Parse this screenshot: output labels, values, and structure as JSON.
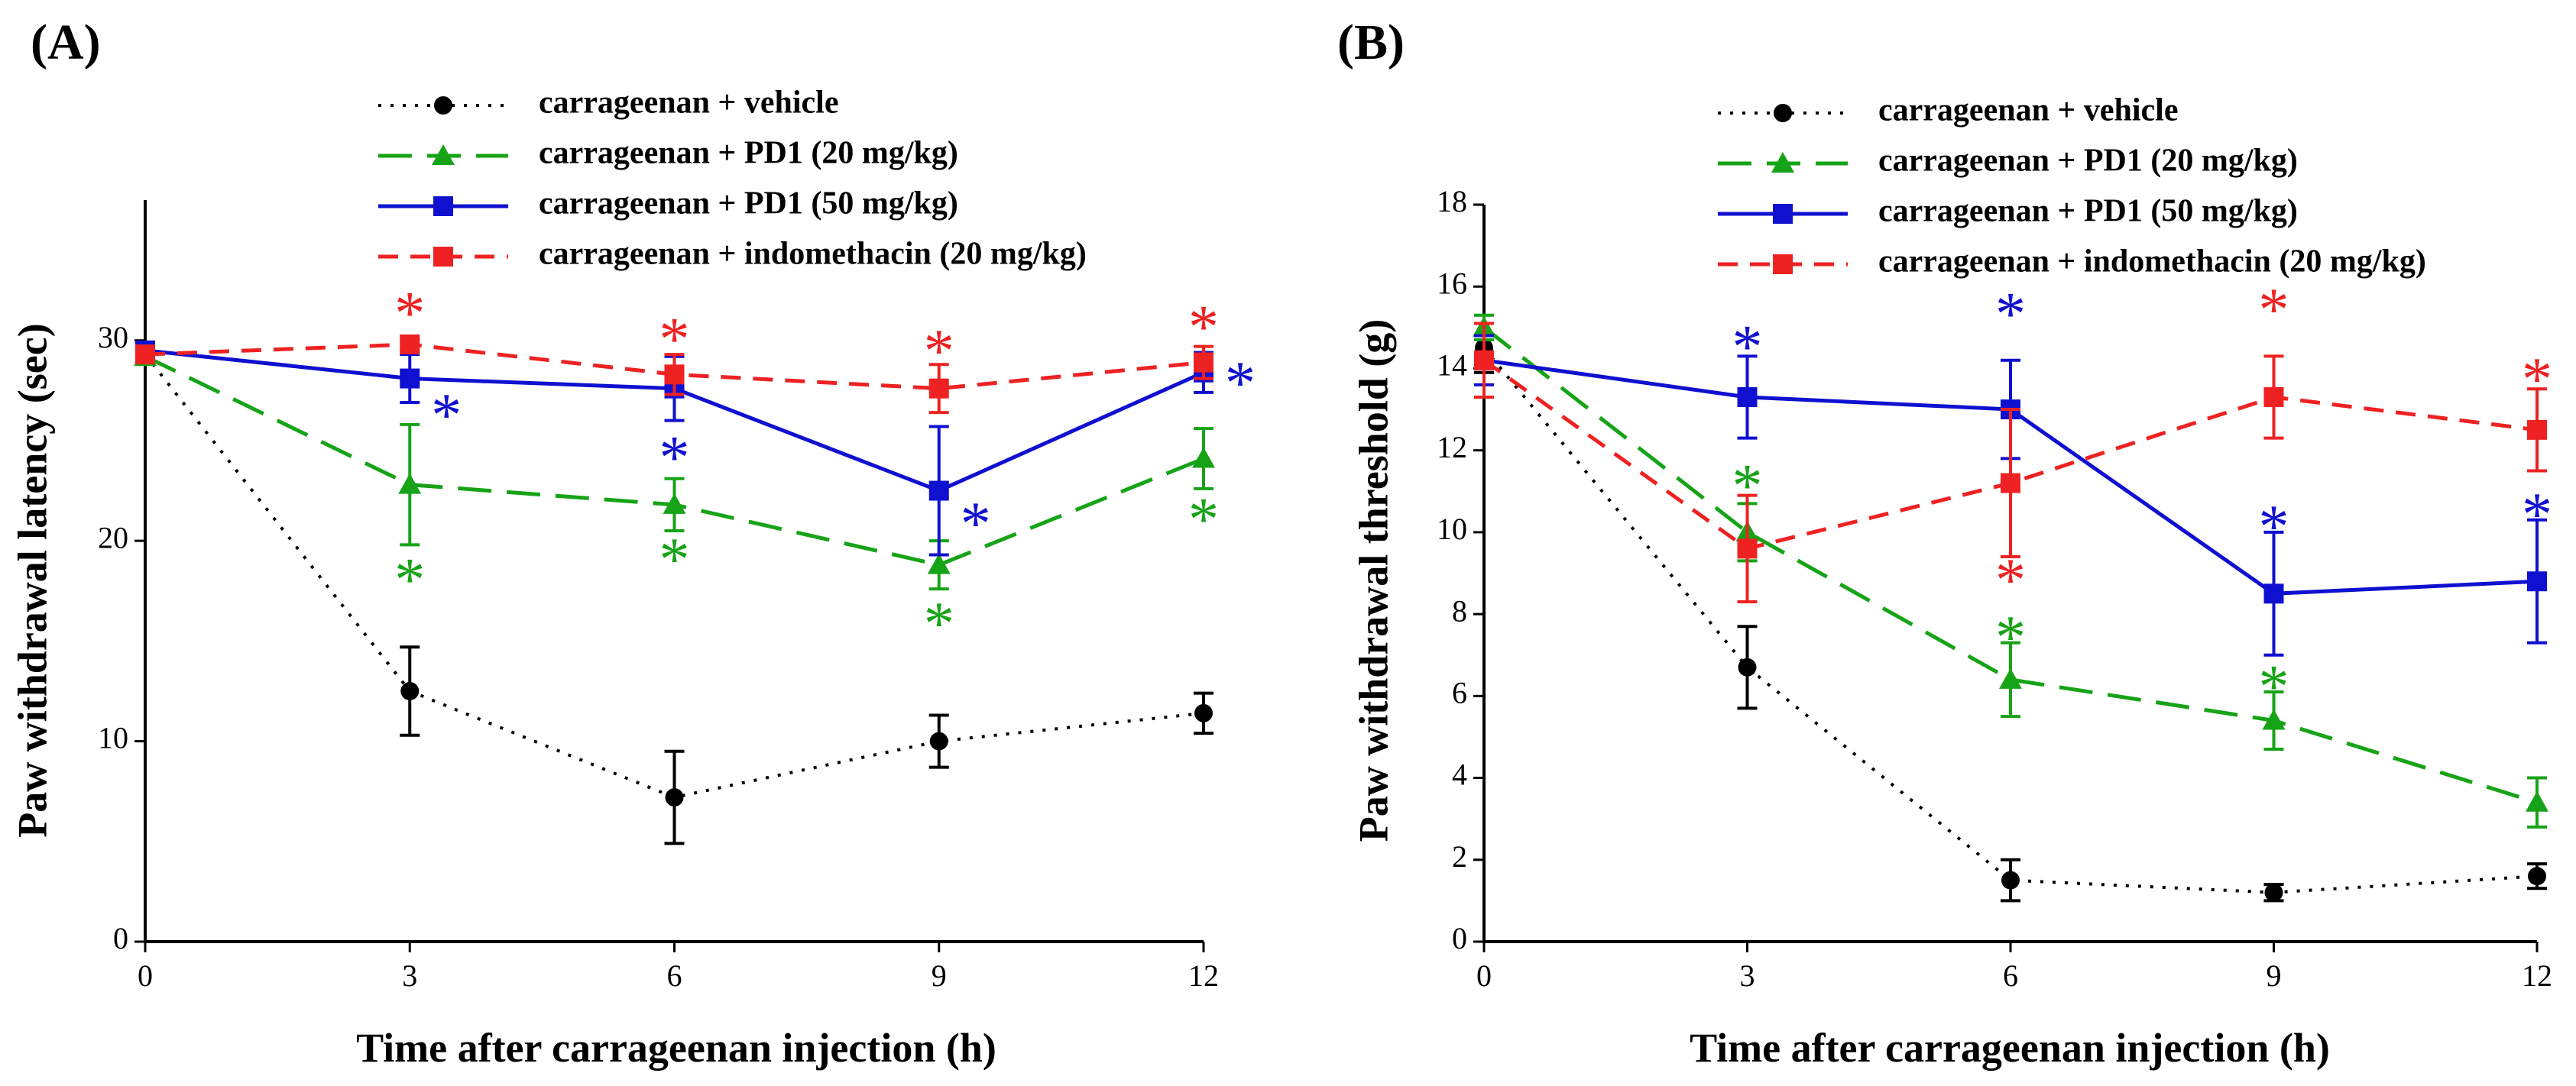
{
  "chart_data": [
    {
      "panel": "(A)",
      "type": "line",
      "xlabel": "Time after carrageenan injection (h)",
      "ylabel": "Paw withdrawal latency (sec)",
      "xlim": [
        0,
        12
      ],
      "ylim": [
        0,
        37
      ],
      "xticks": [
        0,
        3,
        6,
        9,
        12
      ],
      "yticks": [
        0,
        10,
        20,
        30
      ],
      "grid": false,
      "legend_position": "top",
      "x": [
        0,
        3,
        6,
        9,
        12
      ],
      "series": [
        {
          "name": "carrageenan + vehicle",
          "color": "#000000",
          "marker": "circle",
          "dash": "dotted",
          "values": [
            29.3,
            12.5,
            7.2,
            10.0,
            11.4
          ],
          "errors": [
            0.4,
            2.2,
            2.3,
            1.3,
            1.0
          ]
        },
        {
          "name": "carrageenan + PD1 (20 mg/kg)",
          "color": "#17a317",
          "marker": "triangle",
          "dash": "long-dash",
          "values": [
            29.2,
            22.8,
            21.8,
            18.8,
            24.1
          ],
          "errors": [
            0.4,
            3.0,
            1.3,
            1.2,
            1.5
          ]
        },
        {
          "name": "carrageenan + PD1 (50 mg/kg)",
          "color": "#1010d0",
          "marker": "square",
          "dash": "solid",
          "values": [
            29.5,
            28.1,
            27.6,
            22.5,
            28.4
          ],
          "errors": [
            0.4,
            1.2,
            1.6,
            3.2,
            1.0
          ]
        },
        {
          "name": "carrageenan + indomethacin (20 mg/kg)",
          "color": "#ee2222",
          "marker": "square",
          "dash": "dash",
          "values": [
            29.3,
            29.8,
            28.3,
            27.6,
            28.9
          ],
          "errors": [
            0.4,
            0.3,
            1.0,
            1.2,
            0.8
          ]
        }
      ],
      "annotations": [
        {
          "text": "*",
          "x": 3,
          "value": 31.5,
          "side": "center",
          "color": "#ee2222"
        },
        {
          "text": "*",
          "x": 3,
          "value": 26.4,
          "side": "right",
          "color": "#1010d0"
        },
        {
          "text": "*",
          "x": 3,
          "value": 18.2,
          "side": "center",
          "color": "#17a317"
        },
        {
          "text": "*",
          "x": 6,
          "value": 30.2,
          "side": "center",
          "color": "#ee2222"
        },
        {
          "text": "*",
          "x": 6,
          "value": 24.3,
          "side": "center",
          "color": "#1010d0"
        },
        {
          "text": "*",
          "x": 6,
          "value": 19.2,
          "side": "center",
          "color": "#17a317"
        },
        {
          "text": "*",
          "x": 9,
          "value": 29.6,
          "side": "center",
          "color": "#ee2222"
        },
        {
          "text": "*",
          "x": 9,
          "value": 21.0,
          "side": "right",
          "color": "#1010d0"
        },
        {
          "text": "*",
          "x": 9,
          "value": 16.0,
          "side": "center",
          "color": "#17a317"
        },
        {
          "text": "*",
          "x": 12,
          "value": 30.8,
          "side": "center",
          "color": "#ee2222"
        },
        {
          "text": "*",
          "x": 12,
          "value": 28.0,
          "side": "right",
          "color": "#1010d0"
        },
        {
          "text": "*",
          "x": 12,
          "value": 21.2,
          "side": "center",
          "color": "#17a317"
        }
      ]
    },
    {
      "panel": "(B)",
      "type": "line",
      "xlabel": "Time after carrageenan injection (h)",
      "ylabel": "Paw withdrawal threshold (g)",
      "xlim": [
        0,
        12
      ],
      "ylim": [
        0,
        18
      ],
      "xticks": [
        0,
        3,
        6,
        9,
        12
      ],
      "yticks": [
        0,
        2,
        4,
        6,
        8,
        10,
        12,
        14,
        16,
        18
      ],
      "grid": false,
      "legend_position": "top",
      "x": [
        0,
        3,
        6,
        9,
        12
      ],
      "series": [
        {
          "name": "carrageenan + vehicle",
          "color": "#000000",
          "marker": "circle",
          "dash": "dotted",
          "values": [
            14.5,
            6.7,
            1.5,
            1.2,
            1.6
          ],
          "errors": [
            0.6,
            1.0,
            0.5,
            0.2,
            0.3
          ]
        },
        {
          "name": "carrageenan + PD1 (20 mg/kg)",
          "color": "#17a317",
          "marker": "triangle",
          "dash": "long-dash",
          "values": [
            15.0,
            10.0,
            6.4,
            5.4,
            3.4
          ],
          "errors": [
            0.3,
            0.7,
            0.9,
            0.7,
            0.6
          ]
        },
        {
          "name": "carrageenan + PD1 (50 mg/kg)",
          "color": "#1010d0",
          "marker": "square",
          "dash": "solid",
          "values": [
            14.2,
            13.3,
            13.0,
            8.5,
            8.8
          ],
          "errors": [
            0.6,
            1.0,
            1.2,
            1.5,
            1.5
          ]
        },
        {
          "name": "carrageenan + indomethacin (20 mg/kg)",
          "color": "#ee2222",
          "marker": "square",
          "dash": "dash",
          "values": [
            14.2,
            9.6,
            11.2,
            13.3,
            12.5
          ],
          "errors": [
            0.9,
            1.3,
            1.8,
            1.0,
            1.0
          ]
        }
      ],
      "annotations": [
        {
          "text": "*",
          "x": 3,
          "value": 14.6,
          "side": "center",
          "color": "#1010d0"
        },
        {
          "text": "*",
          "x": 3,
          "value": 11.2,
          "side": "center",
          "color": "#17a317"
        },
        {
          "text": "*",
          "x": 6,
          "value": 15.4,
          "side": "center",
          "color": "#1010d0"
        },
        {
          "text": "*",
          "x": 6,
          "value": 8.9,
          "side": "center",
          "color": "#ee2222"
        },
        {
          "text": "*",
          "x": 6,
          "value": 7.5,
          "side": "center",
          "color": "#17a317"
        },
        {
          "text": "*",
          "x": 9,
          "value": 15.5,
          "side": "center",
          "color": "#ee2222"
        },
        {
          "text": "*",
          "x": 9,
          "value": 10.2,
          "side": "center",
          "color": "#1010d0"
        },
        {
          "text": "*",
          "x": 9,
          "value": 6.3,
          "side": "center",
          "color": "#17a317"
        },
        {
          "text": "*",
          "x": 12,
          "value": 13.8,
          "side": "center",
          "color": "#ee2222"
        },
        {
          "text": "*",
          "x": 12,
          "value": 10.5,
          "side": "center",
          "color": "#1010d0"
        }
      ]
    }
  ]
}
